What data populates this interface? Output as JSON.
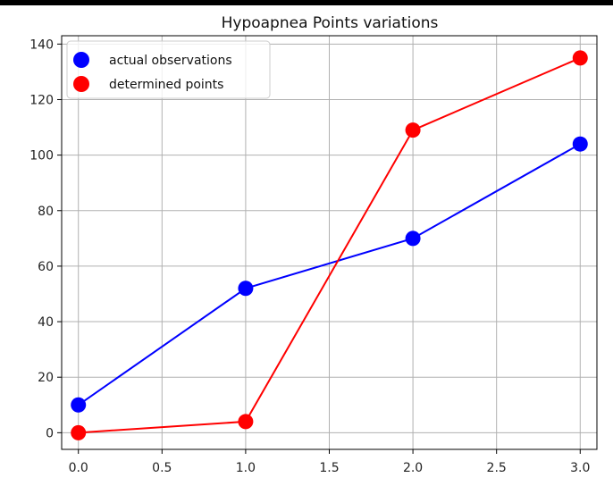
{
  "chart_data": {
    "type": "line",
    "title": "Hypoapnea Points variations",
    "xlabel": "",
    "ylabel": "",
    "x": [
      0,
      1,
      2,
      3
    ],
    "xlim": [
      -0.1,
      3.1
    ],
    "ylim": [
      -6,
      143
    ],
    "xticks": [
      "0.0",
      "0.5",
      "1.0",
      "1.5",
      "2.0",
      "2.5",
      "3.0"
    ],
    "yticks": [
      "0",
      "20",
      "40",
      "60",
      "80",
      "100",
      "120",
      "140"
    ],
    "grid": true,
    "legend_position": "top-left",
    "series": [
      {
        "name": "actual observations",
        "values": [
          10,
          52,
          70,
          104
        ],
        "color": "#0000ff"
      },
      {
        "name": "determined points",
        "values": [
          0,
          4,
          109,
          135
        ],
        "color": "#ff0000"
      }
    ]
  }
}
